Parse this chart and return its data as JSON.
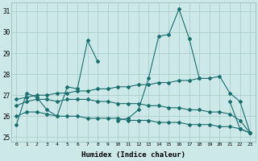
{
  "title": "",
  "xlabel": "Humidex (Indice chaleur)",
  "xlim": [
    -0.5,
    23.5
  ],
  "ylim": [
    24.8,
    31.4
  ],
  "yticks": [
    25,
    26,
    27,
    28,
    29,
    30,
    31
  ],
  "xticks": [
    0,
    1,
    2,
    3,
    4,
    5,
    6,
    7,
    8,
    9,
    10,
    11,
    12,
    13,
    14,
    15,
    16,
    17,
    18,
    19,
    20,
    21,
    22,
    23
  ],
  "background_color": "#cce8e8",
  "grid_color": "#a8c8c8",
  "line_color": "#1a6e6e",
  "line1_y": [
    25.6,
    27.1,
    26.9,
    26.3,
    26.0,
    27.4,
    27.3,
    29.6,
    28.6,
    null,
    25.8,
    25.9,
    26.3,
    27.8,
    29.8,
    29.9,
    31.1,
    29.7,
    27.8,
    null,
    null,
    26.7,
    25.4,
    25.2
  ],
  "line2_y": [
    26.8,
    26.9,
    27.0,
    27.0,
    27.1,
    27.1,
    27.2,
    27.2,
    27.3,
    27.3,
    27.4,
    27.4,
    27.5,
    27.5,
    27.6,
    27.6,
    27.7,
    27.7,
    27.8,
    27.8,
    27.9,
    27.1,
    26.7,
    25.2
  ],
  "line3_y": [
    26.5,
    26.7,
    26.8,
    26.8,
    26.7,
    26.8,
    26.8,
    26.8,
    26.7,
    26.7,
    26.6,
    26.6,
    26.6,
    26.5,
    26.5,
    26.4,
    26.4,
    26.3,
    26.3,
    26.2,
    26.2,
    26.1,
    25.8,
    25.2
  ],
  "line4_y": [
    26.0,
    26.2,
    26.2,
    26.1,
    26.0,
    26.0,
    26.0,
    25.9,
    25.9,
    25.9,
    25.9,
    25.8,
    25.8,
    25.8,
    25.7,
    25.7,
    25.7,
    25.6,
    25.6,
    25.6,
    25.5,
    25.5,
    25.4,
    25.2
  ]
}
